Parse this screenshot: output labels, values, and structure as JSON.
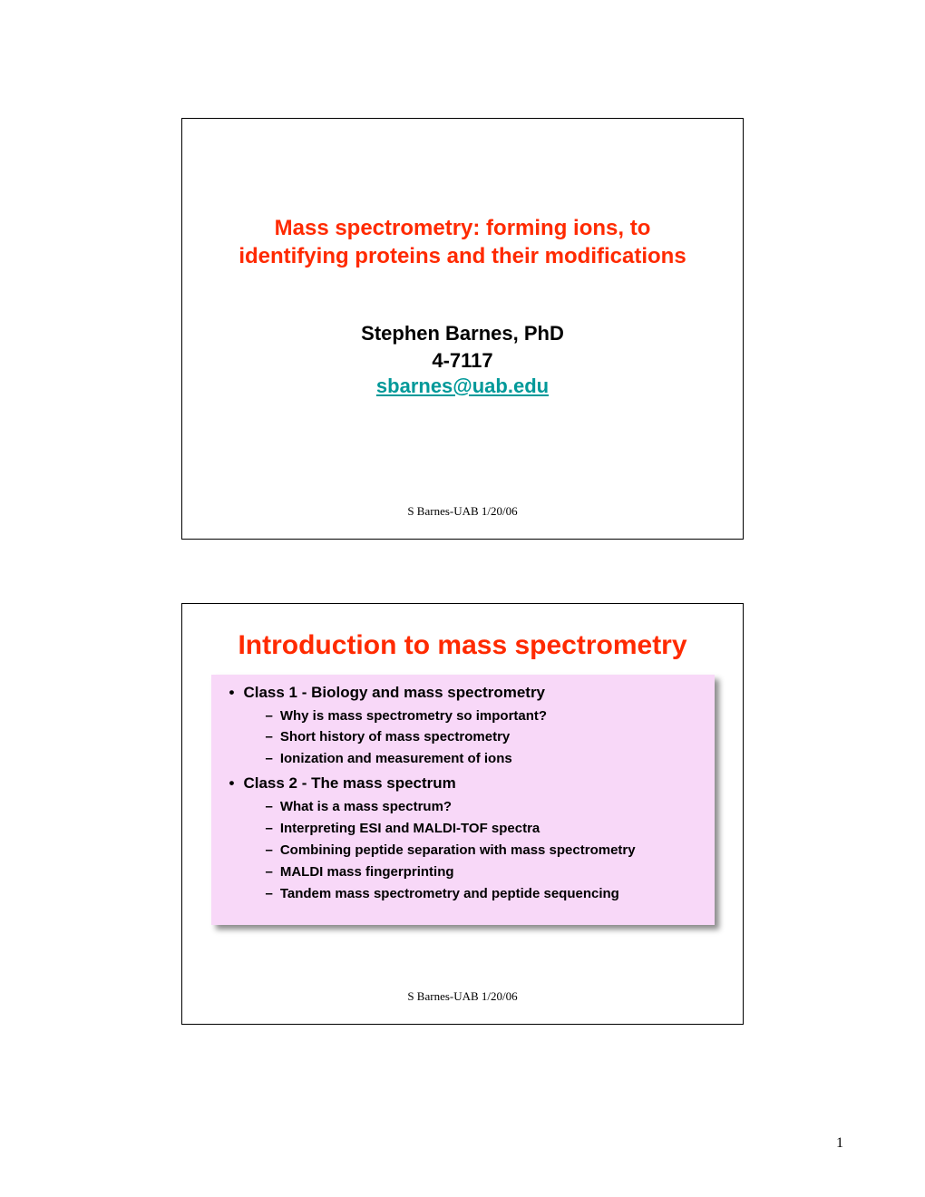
{
  "colors": {
    "title_red": "#ff2a00",
    "email_teal": "#009999",
    "box_pink": "#f8d8f8",
    "shadow": "rgba(0,0,0,0.45)",
    "background": "#ffffff",
    "border": "#000000"
  },
  "slide1": {
    "title": "Mass spectrometry: forming ions, to identifying proteins and their modifications",
    "author_name": "Stephen Barnes, PhD",
    "author_phone": "4-7117",
    "author_email": "sbarnes@uab.edu",
    "footer": "S Barnes-UAB 1/20/06"
  },
  "slide2": {
    "title": "Introduction to mass spectrometry",
    "class1": {
      "heading": "Class 1 - Biology and mass spectrometry",
      "items": [
        "Why is mass spectrometry so important?",
        "Short history of mass spectrometry",
        "Ionization and measurement of ions"
      ]
    },
    "class2": {
      "heading": "Class 2 - The mass spectrum",
      "items": [
        "What is a mass spectrum?",
        "Interpreting ESI and MALDI-TOF spectra",
        "Combining peptide separation with mass spectrometry",
        "MALDI mass fingerprinting",
        "Tandem mass spectrometry and peptide sequencing"
      ]
    },
    "footer": "S Barnes-UAB 1/20/06"
  },
  "page_number": "1"
}
